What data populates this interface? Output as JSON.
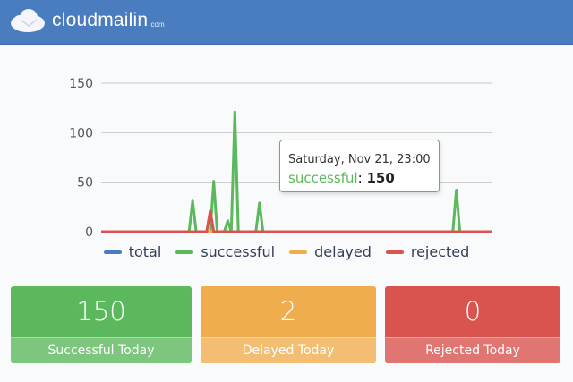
{
  "header": {
    "logo_text": "cloudmailin",
    "logo_suffix": ".com",
    "brand_color": "#4a7cc0"
  },
  "chart_data": {
    "type": "line",
    "ylim": [
      0,
      150
    ],
    "yticks": [
      0,
      50,
      100,
      150
    ],
    "grid": true,
    "legend_position": "bottom",
    "series": [
      {
        "name": "total",
        "color": "#4a7cc0",
        "values": [
          0,
          0,
          0,
          0,
          0,
          0,
          0,
          0,
          0,
          0,
          0,
          0,
          0,
          0,
          0,
          0,
          0,
          0,
          0,
          0,
          0,
          0,
          0,
          0,
          0,
          0,
          0,
          0,
          0,
          0,
          0,
          0,
          0,
          0,
          0,
          0,
          0,
          0,
          0,
          0,
          0,
          0,
          0,
          0,
          0,
          0,
          0,
          0,
          0,
          0,
          0,
          0,
          0,
          0,
          0,
          0,
          0,
          0,
          0,
          0,
          0,
          0,
          0,
          0,
          0,
          0,
          0,
          0,
          0,
          0,
          0,
          0,
          0,
          0,
          0,
          0,
          0,
          0,
          0,
          0,
          0,
          0,
          0,
          0,
          0,
          0,
          0,
          0,
          0,
          0,
          0,
          0,
          0,
          0,
          0,
          0,
          0,
          0,
          0,
          0,
          0,
          0,
          0,
          0,
          0,
          0,
          0,
          0,
          0,
          0,
          0,
          0
        ]
      },
      {
        "name": "successful",
        "color": "#5cb85c",
        "values": [
          0,
          0,
          0,
          0,
          0,
          0,
          0,
          0,
          0,
          0,
          0,
          0,
          0,
          0,
          0,
          0,
          0,
          0,
          0,
          0,
          0,
          0,
          0,
          0,
          0,
          0,
          31,
          0,
          0,
          0,
          0,
          0,
          51,
          0,
          0,
          0,
          11,
          0,
          121,
          0,
          0,
          0,
          0,
          0,
          0,
          29,
          0,
          0,
          0,
          0,
          0,
          0,
          0,
          0,
          0,
          0,
          0,
          0,
          0,
          0,
          0,
          0,
          0,
          0,
          0,
          0,
          0,
          0,
          0,
          0,
          0,
          0,
          0,
          0,
          0,
          0,
          0,
          0,
          0,
          0,
          0,
          0,
          0,
          0,
          0,
          0,
          0,
          0,
          0,
          0,
          0,
          0,
          0,
          0,
          0,
          0,
          0,
          0,
          0,
          0,
          0,
          42,
          0,
          0,
          0,
          0,
          0,
          0,
          0,
          0,
          0,
          0
        ]
      },
      {
        "name": "delayed",
        "color": "#f0ad4e",
        "values": [
          0,
          0,
          0,
          0,
          0,
          0,
          0,
          0,
          0,
          0,
          0,
          0,
          0,
          0,
          0,
          0,
          0,
          0,
          0,
          0,
          0,
          0,
          0,
          0,
          0,
          0,
          0,
          0,
          0,
          0,
          0,
          0,
          0,
          0,
          0,
          0,
          0,
          0,
          0,
          0,
          0,
          0,
          0,
          0,
          0,
          0,
          0,
          0,
          0,
          0,
          0,
          0,
          0,
          0,
          0,
          0,
          0,
          0,
          0,
          0,
          0,
          0,
          0,
          0,
          0,
          0,
          0,
          0,
          0,
          0,
          0,
          0,
          0,
          0,
          0,
          0,
          0,
          0,
          0,
          0,
          0,
          0,
          0,
          0,
          0,
          0,
          0,
          0,
          0,
          0,
          0,
          0,
          0,
          0,
          0,
          0,
          0,
          0,
          0,
          0,
          0,
          0,
          0,
          0,
          0,
          0,
          0,
          0,
          0,
          0,
          0,
          0
        ]
      },
      {
        "name": "rejected",
        "color": "#d9534f",
        "values": [
          0,
          0,
          0,
          0,
          0,
          0,
          0,
          0,
          0,
          0,
          0,
          0,
          0,
          0,
          0,
          0,
          0,
          0,
          0,
          0,
          0,
          0,
          0,
          0,
          0,
          0,
          0,
          0,
          0,
          0,
          0,
          21,
          0,
          0,
          0,
          0,
          0,
          0,
          0,
          0,
          0,
          0,
          0,
          0,
          0,
          0,
          0,
          0,
          0,
          0,
          0,
          0,
          0,
          0,
          0,
          0,
          0,
          0,
          0,
          0,
          0,
          0,
          0,
          0,
          0,
          0,
          0,
          0,
          0,
          0,
          0,
          0,
          0,
          0,
          0,
          0,
          0,
          0,
          0,
          0,
          0,
          0,
          0,
          0,
          0,
          0,
          0,
          0,
          0,
          0,
          0,
          0,
          0,
          0,
          0,
          0,
          0,
          0,
          0,
          0,
          0,
          0,
          0,
          0,
          0,
          0,
          0,
          0,
          0,
          0,
          0,
          0
        ]
      }
    ],
    "tooltip": {
      "date": "Saturday, Nov 21, 23:00",
      "series": "successful",
      "separator": ": ",
      "value": "150"
    }
  },
  "cards": [
    {
      "value": "150",
      "label": "Successful Today",
      "color": "#5cb85c",
      "label_color": "#7dc67d"
    },
    {
      "value": "2",
      "label": "Delayed Today",
      "color": "#f0ad4e",
      "label_color": "#f3be71"
    },
    {
      "value": "0",
      "label": "Rejected Today",
      "color": "#d9534f",
      "label_color": "#e07572"
    }
  ]
}
